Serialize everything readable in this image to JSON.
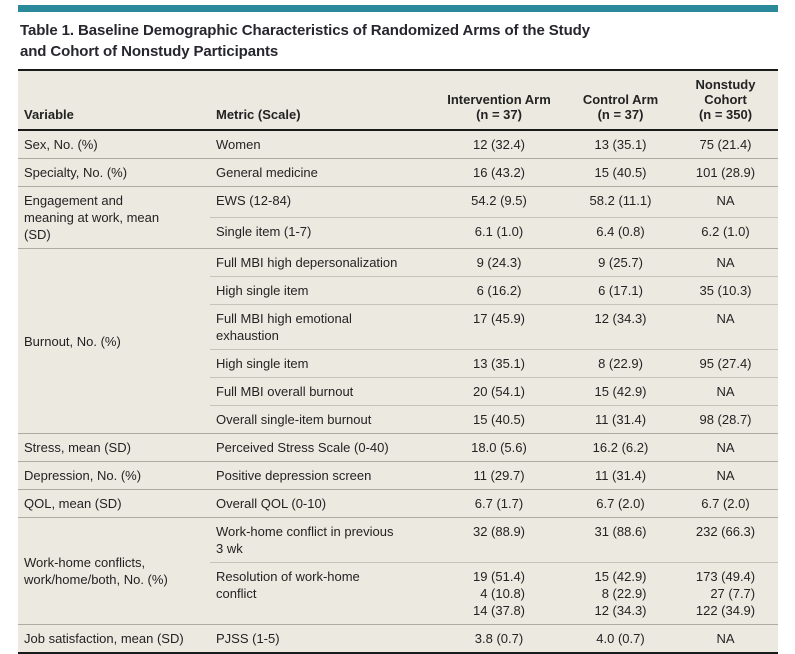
{
  "colors": {
    "accent_teal": "#2a8a9c",
    "table_background": "#ece9e1",
    "rule_black": "#1a1a1a",
    "row_separator": "#c6c3ba",
    "text": "#232323"
  },
  "table": {
    "title_lines": [
      "Table 1. Baseline Demographic Characteristics of Randomized Arms of the Study",
      "and Cohort of Nonstudy Participants"
    ],
    "header": {
      "variable": "Variable",
      "metric": "Metric (Scale)",
      "intervention": [
        "Intervention Arm",
        "(n = 37)"
      ],
      "control": [
        "Control Arm",
        "(n = 37)"
      ],
      "nonstudy": [
        "Nonstudy",
        "Cohort",
        "(n = 350)"
      ]
    },
    "groups": [
      {
        "variable": "Sex, No. (%)",
        "rows": [
          {
            "metric": "Women",
            "intervention": "12 (32.4)",
            "control": "13 (35.1)",
            "nonstudy": "75 (21.4)"
          }
        ]
      },
      {
        "variable": "Specialty, No. (%)",
        "rows": [
          {
            "metric": "General medicine",
            "intervention": "16 (43.2)",
            "control": "15 (40.5)",
            "nonstudy": "101 (28.9)"
          }
        ]
      },
      {
        "variable": "Engagement and meaning at work, mean (SD)",
        "rows": [
          {
            "metric": "EWS (12-84)",
            "intervention": "54.2 (9.5)",
            "control": "58.2 (11.1)",
            "nonstudy": "NA"
          },
          {
            "metric": "Single item (1-7)",
            "intervention": "6.1 (1.0)",
            "control": "6.4 (0.8)",
            "nonstudy": "6.2 (1.0)"
          }
        ]
      },
      {
        "variable": "Burnout, No. (%)",
        "rows": [
          {
            "metric": "Full MBI high depersonalization",
            "intervention": "9 (24.3)",
            "control": "9 (25.7)",
            "nonstudy": "NA"
          },
          {
            "metric": "High single item",
            "intervention": "6 (16.2)",
            "control": "6 (17.1)",
            "nonstudy": "35 (10.3)"
          },
          {
            "metric": "Full MBI high emotional exhaustion",
            "intervention": "17 (45.9)",
            "control": "12 (34.3)",
            "nonstudy": "NA"
          },
          {
            "metric": "High single item",
            "intervention": "13 (35.1)",
            "control": "8 (22.9)",
            "nonstudy": "95 (27.4)"
          },
          {
            "metric": "Full MBI overall burnout",
            "intervention": "20 (54.1)",
            "control": "15 (42.9)",
            "nonstudy": "NA"
          },
          {
            "metric": "Overall single-item burnout",
            "intervention": "15 (40.5)",
            "control": "11 (31.4)",
            "nonstudy": "98 (28.7)"
          }
        ]
      },
      {
        "variable": "Stress, mean (SD)",
        "rows": [
          {
            "metric": "Perceived Stress Scale (0-40)",
            "intervention": "18.0 (5.6)",
            "control": "16.2 (6.2)",
            "nonstudy": "NA"
          }
        ]
      },
      {
        "variable": "Depression, No. (%)",
        "rows": [
          {
            "metric": "Positive depression screen",
            "intervention": "11 (29.7)",
            "control": "11 (31.4)",
            "nonstudy": "NA"
          }
        ]
      },
      {
        "variable": "QOL, mean (SD)",
        "rows": [
          {
            "metric": "Overall QOL (0-10)",
            "intervention": "6.7 (1.7)",
            "control": "6.7 (2.0)",
            "nonstudy": "6.7 (2.0)"
          }
        ]
      },
      {
        "variable": "Work-home conflicts, work/home/both, No. (%)",
        "rows": [
          {
            "metric": "Work-home conflict in previous 3 wk",
            "intervention": "32 (88.9)",
            "control": "31 (88.6)",
            "nonstudy": "232 (66.3)"
          },
          {
            "metric": "Resolution of work-home conflict",
            "intervention": [
              "19 (51.4)",
              "4 (10.8)",
              "14 (37.8)"
            ],
            "control": [
              "15 (42.9)",
              "8 (22.9)",
              "12 (34.3)"
            ],
            "nonstudy": [
              "173 (49.4)",
              "27 (7.7)",
              "122 (34.9)"
            ]
          }
        ]
      },
      {
        "variable": "Job satisfaction, mean (SD)",
        "rows": [
          {
            "metric": "PJSS (1-5)",
            "intervention": "3.8 (0.7)",
            "control": "4.0 (0.7)",
            "nonstudy": "NA"
          }
        ]
      }
    ]
  }
}
